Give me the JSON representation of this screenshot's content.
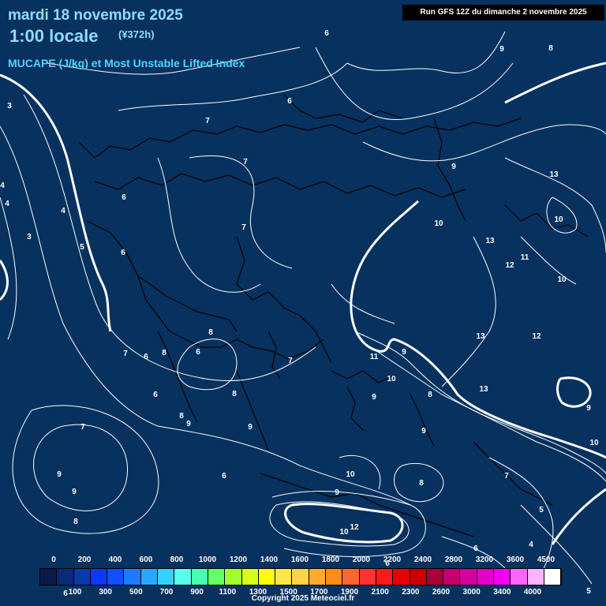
{
  "header": {
    "date_line": "mardi 18 novembre 2025",
    "time_line": "1:00 locale",
    "horizon": "(¥372h)",
    "parameter": "MUCAPE (J/kg) et Most Unstable Lifted Index"
  },
  "run_info": "Run GFS 12Z du dimanche 2 novembre 2025",
  "copyright": "Copyright 2025 Meteociel.fr",
  "legend": {
    "top_ticks": [
      "0",
      "200",
      "400",
      "600",
      "800",
      "1000",
      "1200",
      "1400",
      "1600",
      "1800",
      "2000",
      "2200",
      "2400",
      "2800",
      "3200",
      "3600",
      "4500"
    ],
    "bottom_ticks": [
      "100",
      "300",
      "500",
      "700",
      "900",
      "1100",
      "1300",
      "1500",
      "1700",
      "1900",
      "2100",
      "2300",
      "2600",
      "3000",
      "3400",
      "4000"
    ],
    "colors": [
      "#0a1a4a",
      "#0a2a7a",
      "#0a3aaa",
      "#0a3aff",
      "#1050ff",
      "#1e7bff",
      "#2aa8ff",
      "#36d2ff",
      "#5affee",
      "#4cffb0",
      "#66ff66",
      "#9fff33",
      "#d4ff1a",
      "#ffff00",
      "#ffe64d",
      "#ffd24d",
      "#ffaa33",
      "#ff8c1a",
      "#ff6633",
      "#ff3333",
      "#ff1a1a",
      "#e60000",
      "#c80000",
      "#a8003a",
      "#c4006e",
      "#d4009c",
      "#e000c8",
      "#f000f0",
      "#ff66ff",
      "#ffb3ff",
      "#ffffff"
    ]
  },
  "contour_labels": [
    {
      "text": "6"
    },
    {
      "text": "9"
    },
    {
      "text": "8"
    },
    {
      "text": "3"
    },
    {
      "text": "6"
    },
    {
      "text": "7"
    },
    {
      "text": "4"
    },
    {
      "text": "4"
    },
    {
      "text": "3"
    },
    {
      "text": "4"
    },
    {
      "text": "5"
    },
    {
      "text": "6"
    },
    {
      "text": "6"
    },
    {
      "text": "7"
    },
    {
      "text": "7"
    },
    {
      "text": "9"
    },
    {
      "text": "13"
    },
    {
      "text": "10"
    },
    {
      "text": "10"
    },
    {
      "text": "13"
    },
    {
      "text": "11"
    },
    {
      "text": "12"
    },
    {
      "text": "10"
    },
    {
      "text": "8"
    },
    {
      "text": "7"
    },
    {
      "text": "6"
    },
    {
      "text": "8"
    },
    {
      "text": "6"
    },
    {
      "text": "7"
    },
    {
      "text": "11"
    },
    {
      "text": "9"
    },
    {
      "text": "13"
    },
    {
      "text": "12"
    },
    {
      "text": "10"
    },
    {
      "text": "13"
    },
    {
      "text": "9"
    },
    {
      "text": "8"
    },
    {
      "text": "9"
    },
    {
      "text": "8"
    },
    {
      "text": "6"
    },
    {
      "text": "8"
    },
    {
      "text": "9"
    },
    {
      "text": "9"
    },
    {
      "text": "7"
    },
    {
      "text": "9"
    },
    {
      "text": "9"
    },
    {
      "text": "8"
    },
    {
      "text": "6"
    },
    {
      "text": "10"
    },
    {
      "text": "9"
    },
    {
      "text": "8"
    },
    {
      "text": "7"
    },
    {
      "text": "10"
    },
    {
      "text": "5"
    },
    {
      "text": "10"
    },
    {
      "text": "12"
    },
    {
      "text": "6"
    },
    {
      "text": "6"
    },
    {
      "text": "4"
    },
    {
      "text": "6"
    },
    {
      "text": "5"
    },
    {
      "text": "9"
    }
  ]
}
